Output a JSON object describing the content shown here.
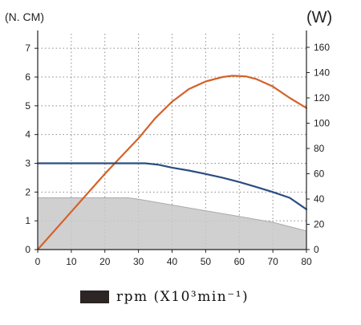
{
  "chart_data": {
    "type": "line",
    "x_ticks": [
      "0",
      "10",
      "20",
      "30",
      "40",
      "50",
      "60",
      "70",
      "80"
    ],
    "left_axis": {
      "label": "(N. CM)",
      "range": [
        0,
        7
      ],
      "ticks": [
        "0",
        "1",
        "2",
        "3",
        "4",
        "5",
        "6",
        "7"
      ]
    },
    "right_axis": {
      "label": "(W)",
      "range": [
        0,
        170
      ],
      "ticks": [
        "0",
        "20",
        "40",
        "60",
        "80",
        "100",
        "120",
        "140",
        "160"
      ]
    },
    "grid": true,
    "legend": {
      "label": "rpm (X10³min⁻¹)",
      "placement": "bottom-left"
    },
    "series": [
      {
        "color": "#d4622a",
        "axis": "right",
        "points": [
          [
            0,
            0
          ],
          [
            10,
            30
          ],
          [
            20,
            60
          ],
          [
            30,
            88
          ],
          [
            35,
            104
          ],
          [
            40,
            117
          ],
          [
            45,
            127
          ],
          [
            50,
            133
          ],
          [
            55,
            136.5
          ],
          [
            58,
            137.5
          ],
          [
            62,
            137
          ],
          [
            65,
            135
          ],
          [
            70,
            129
          ],
          [
            75,
            120
          ],
          [
            80,
            112
          ]
        ]
      },
      {
        "color": "#2a4d82",
        "axis": "left",
        "points": [
          [
            0,
            3.0
          ],
          [
            32,
            3.0
          ],
          [
            36,
            2.95
          ],
          [
            40,
            2.85
          ],
          [
            45,
            2.75
          ],
          [
            50,
            2.63
          ],
          [
            55,
            2.5
          ],
          [
            60,
            2.35
          ],
          [
            65,
            2.18
          ],
          [
            70,
            2.0
          ],
          [
            75,
            1.8
          ],
          [
            80,
            1.4
          ]
        ]
      },
      {
        "color": "#c8c8c8",
        "axis": "left",
        "fill": true,
        "points": [
          [
            0,
            1.8
          ],
          [
            27,
            1.8
          ],
          [
            30,
            1.75
          ],
          [
            40,
            1.55
          ],
          [
            50,
            1.35
          ],
          [
            60,
            1.15
          ],
          [
            70,
            0.95
          ],
          [
            80,
            0.65
          ]
        ]
      }
    ]
  },
  "colors": {
    "grid": "#8a8a8a",
    "axis": "#222222",
    "area_fill": "#c8c8c8",
    "area_line": "#a9a9b3"
  }
}
